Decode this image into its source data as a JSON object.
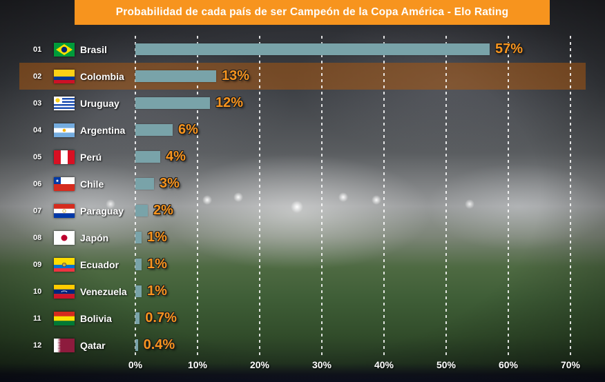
{
  "title": "Probabilidad de cada país de ser Campeón de la Copa América - Elo Rating",
  "colors": {
    "title_bg": "#F7941E",
    "bar": "#79A3A9",
    "value_label": "#F7941E",
    "axis_text": "#FFFFFF",
    "highlight_row_bg": "rgba(173,88,15,0.52)"
  },
  "chart_data": {
    "type": "bar",
    "orientation": "horizontal",
    "title": "Probabilidad de cada país de ser Campeón de la Copa América - Elo Rating",
    "xlabel": "",
    "ylabel": "",
    "xlim": [
      0,
      70
    ],
    "x_ticks": [
      "0%",
      "10%",
      "20%",
      "30%",
      "40%",
      "50%",
      "60%",
      "70%"
    ],
    "grid": "vertical-dashed-white",
    "legend": "none",
    "highlighted_country": "Colombia",
    "rows": [
      {
        "rank": "01",
        "country": "Brasil",
        "value": 57,
        "label": "57%",
        "flag": "flag-brasil"
      },
      {
        "rank": "02",
        "country": "Colombia",
        "value": 13,
        "label": "13%",
        "flag": "flag-colombia"
      },
      {
        "rank": "03",
        "country": "Uruguay",
        "value": 12,
        "label": "12%",
        "flag": "flag-uruguay"
      },
      {
        "rank": "04",
        "country": "Argentina",
        "value": 6,
        "label": "6%",
        "flag": "flag-argentina"
      },
      {
        "rank": "05",
        "country": "Perú",
        "value": 4,
        "label": "4%",
        "flag": "flag-peru"
      },
      {
        "rank": "06",
        "country": "Chile",
        "value": 3,
        "label": "3%",
        "flag": "flag-chile"
      },
      {
        "rank": "07",
        "country": "Paraguay",
        "value": 2,
        "label": "2%",
        "flag": "flag-paraguay"
      },
      {
        "rank": "08",
        "country": "Japón",
        "value": 1,
        "label": "1%",
        "flag": "flag-japon"
      },
      {
        "rank": "09",
        "country": "Ecuador",
        "value": 1,
        "label": "1%",
        "flag": "flag-ecuador"
      },
      {
        "rank": "10",
        "country": "Venezuela",
        "value": 1,
        "label": "1%",
        "flag": "flag-venezuela"
      },
      {
        "rank": "11",
        "country": "Bolivia",
        "value": 0.7,
        "label": "0.7%",
        "flag": "flag-bolivia"
      },
      {
        "rank": "12",
        "country": "Qatar",
        "value": 0.4,
        "label": "0.4%",
        "flag": "flag-qatar"
      }
    ]
  }
}
